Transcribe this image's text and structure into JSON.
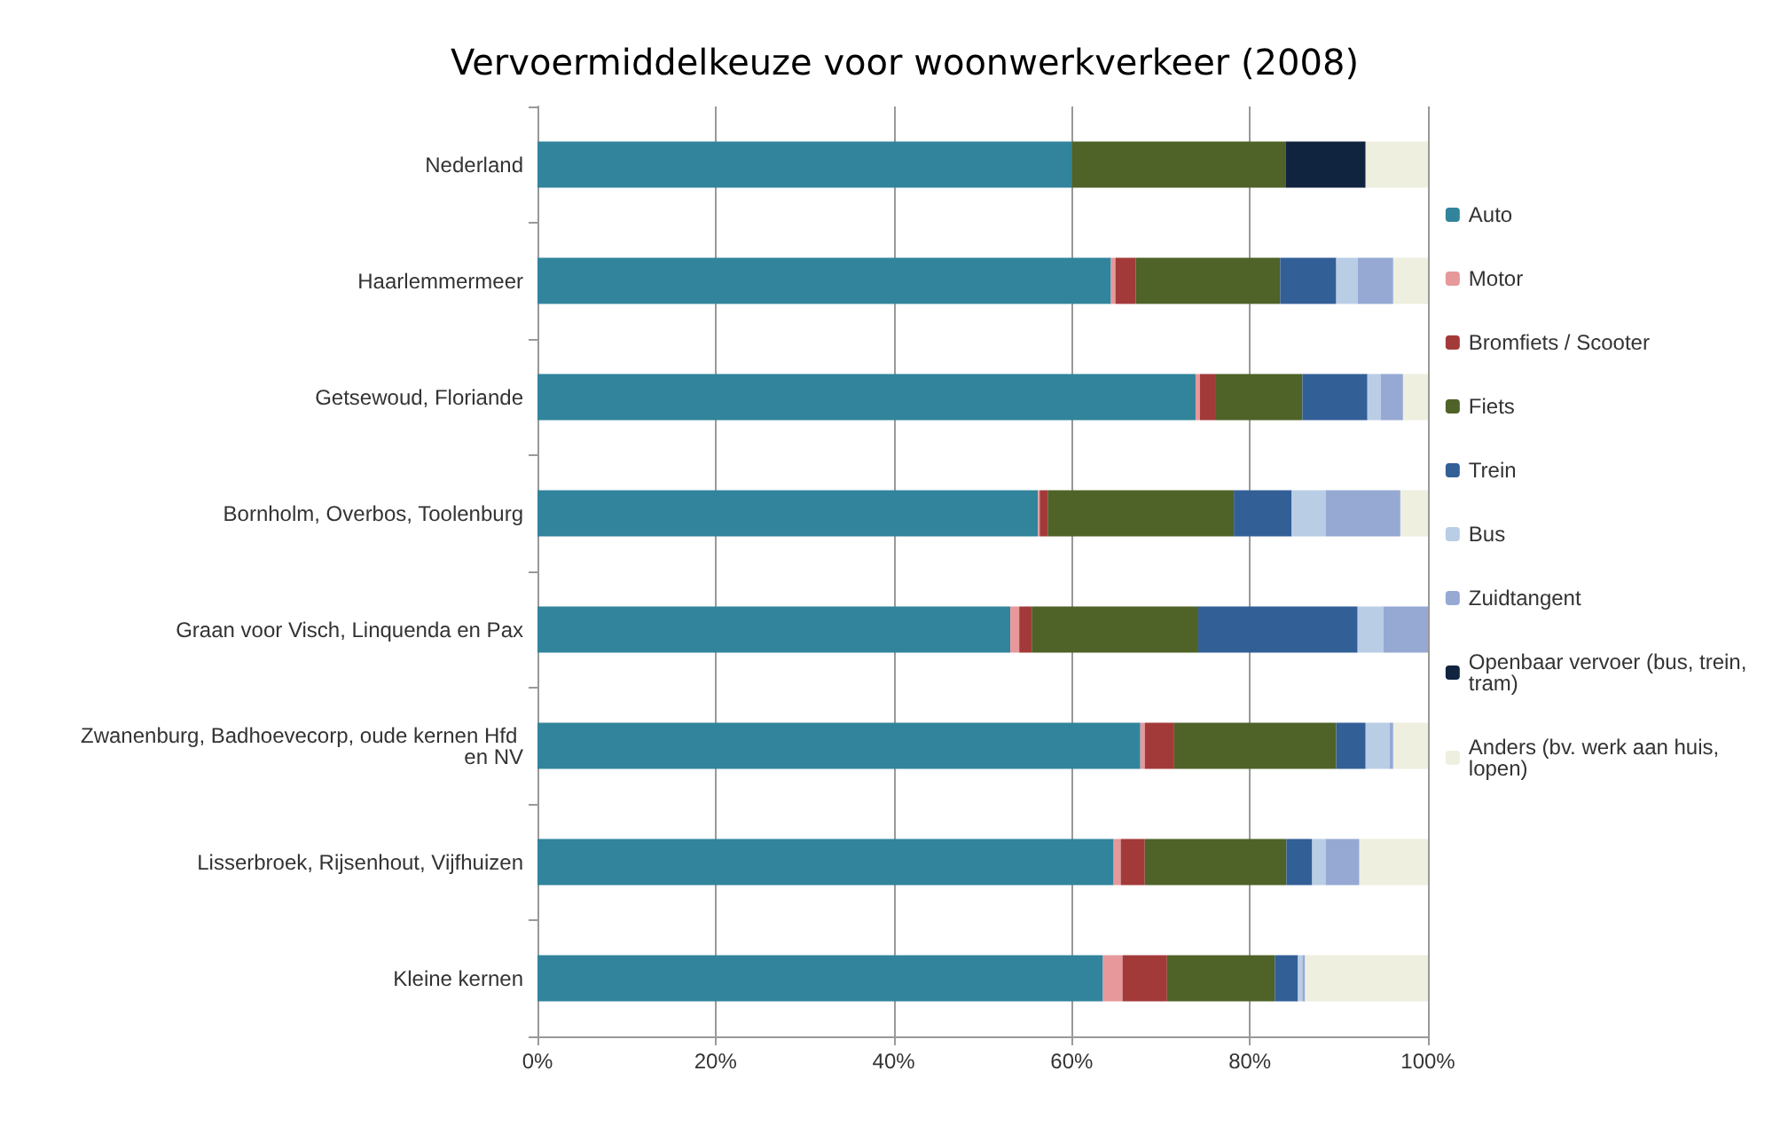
{
  "chart_data": {
    "type": "bar",
    "orientation": "horizontal",
    "stacked": true,
    "title": "Vervoermiddelkeuze voor woonwerkverkeer (2008)",
    "categories": [
      "Nederland",
      "Haarlemmermeer",
      "Getsewoud, Floriande",
      "Bornholm, Overbos, Toolenburg",
      "Graan voor Visch, Linquenda en Pax",
      "Zwanenburg, Badhoevecorp, oude kernen Hfd en NV",
      "Lisserbroek, Rijsenhout, Vijfhuizen",
      "Kleine kernen"
    ],
    "series": [
      {
        "name": "Auto",
        "color": "#31849b",
        "values": [
          60,
          64.4,
          73.9,
          56.2,
          53.1,
          67.7,
          64.7,
          63.5
        ]
      },
      {
        "name": "Motor",
        "color": "#e6989a",
        "values": [
          0,
          0.5,
          0.5,
          0.2,
          1.0,
          0.5,
          0.8,
          2.2
        ]
      },
      {
        "name": "Bromfiets / Scooter",
        "color": "#a33a3a",
        "values": [
          0,
          2.3,
          1.7,
          0.9,
          1.4,
          3.3,
          2.7,
          5.0
        ]
      },
      {
        "name": "Fiets",
        "color": "#4f6228",
        "values": [
          24,
          16.2,
          9.8,
          20.9,
          18.7,
          18.2,
          15.9,
          12.1
        ]
      },
      {
        "name": "Trein",
        "color": "#335f97",
        "values": [
          0,
          6.3,
          7.3,
          6.5,
          17.9,
          3.3,
          2.9,
          2.6
        ]
      },
      {
        "name": "Bus",
        "color": "#b9cde5",
        "values": [
          0,
          2.4,
          1.5,
          3.8,
          2.9,
          2.7,
          1.5,
          0.5
        ]
      },
      {
        "name": "Zuidtangent",
        "color": "#95a9d3",
        "values": [
          0,
          4.0,
          2.5,
          8.4,
          5.0,
          0.4,
          3.8,
          0.3
        ]
      },
      {
        "name": "Openbaar vervoer (bus, trein, tram)",
        "color": "#10243f",
        "values": [
          9,
          0,
          0,
          0,
          0,
          0,
          0,
          0
        ]
      },
      {
        "name": "Anders (bv. werk aan huis,lopen)",
        "color": "#eeefdf",
        "values": [
          7,
          3.9,
          2.8,
          3.1,
          0,
          3.9,
          7.7,
          13.8
        ]
      }
    ],
    "xlim": [
      0,
      100
    ],
    "xticks": [
      {
        "value": 0,
        "label": "0%"
      },
      {
        "value": 20,
        "label": "20%"
      },
      {
        "value": 40,
        "label": "40%"
      },
      {
        "value": 60,
        "label": "60%"
      },
      {
        "value": 80,
        "label": "80%"
      },
      {
        "value": 100,
        "label": "100%"
      }
    ],
    "grid": "x",
    "legend": "right"
  }
}
